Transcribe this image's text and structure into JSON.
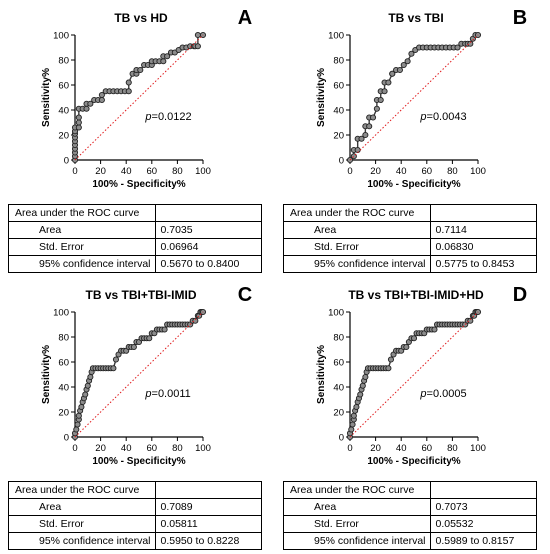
{
  "chart_data": [
    {
      "type": "line",
      "panel_letter": "A",
      "title": "TB vs HD",
      "xlabel": "100% - Specificity%",
      "ylabel": "Sensitivity%",
      "xlim": [
        0,
        100
      ],
      "ylim": [
        0,
        100
      ],
      "xticks": [
        0,
        20,
        40,
        60,
        80,
        100
      ],
      "yticks": [
        0,
        20,
        40,
        60,
        80,
        100
      ],
      "annotation_italic": "p",
      "annotation_value": "=0.0122",
      "series": [
        {
          "x": [
            0,
            0,
            0,
            0,
            0,
            0,
            0,
            0,
            0,
            0,
            3,
            3,
            3,
            3,
            6,
            9,
            9,
            12,
            15,
            18,
            21,
            21,
            24,
            27,
            30,
            33,
            36,
            39,
            42,
            42,
            45,
            48,
            48,
            51,
            54,
            57,
            60,
            60,
            63,
            66,
            69,
            69,
            72,
            75,
            78,
            81,
            84,
            87,
            90,
            93,
            94,
            96,
            96,
            100
          ],
          "y": [
            0,
            3,
            6,
            9,
            12,
            15,
            18,
            21,
            23,
            26,
            26,
            30,
            34,
            41,
            41,
            41,
            45,
            45,
            48,
            48,
            48,
            52,
            55,
            55,
            55,
            55,
            55,
            55,
            55,
            62,
            69,
            69,
            72,
            72,
            76,
            76,
            76,
            79,
            79,
            79,
            79,
            83,
            83,
            86,
            86,
            88,
            90,
            90,
            91,
            91,
            91,
            91,
            100,
            100
          ]
        },
        {
          "x": [
            0,
            100
          ],
          "y": [
            0,
            100
          ],
          "style": "reference"
        }
      ],
      "table": {
        "header": "Area under the ROC curve",
        "rows": [
          {
            "label": "Area",
            "value": "0.7035"
          },
          {
            "label": "Std. Error",
            "value": "0.06964"
          },
          {
            "label": "95% confidence interval",
            "value": "0.5670 to 0.8400"
          }
        ]
      }
    },
    {
      "type": "line",
      "panel_letter": "B",
      "title": "TB vs TBI",
      "xlabel": "100% - Specificity%",
      "ylabel": "Sensitivity%",
      "xlim": [
        0,
        100
      ],
      "ylim": [
        0,
        100
      ],
      "xticks": [
        0,
        20,
        40,
        60,
        80,
        100
      ],
      "yticks": [
        0,
        20,
        40,
        60,
        80,
        100
      ],
      "annotation_italic": "p",
      "annotation_value": "=0.0043",
      "series": [
        {
          "x": [
            0,
            3,
            3,
            6,
            6,
            9,
            12,
            12,
            15,
            15,
            18,
            21,
            21,
            24,
            24,
            27,
            27,
            30,
            33,
            33,
            36,
            39,
            42,
            45,
            48,
            51,
            54,
            57,
            60,
            63,
            66,
            69,
            72,
            75,
            78,
            81,
            84,
            87,
            90,
            92,
            94,
            96,
            98,
            100
          ],
          "y": [
            0,
            3,
            8,
            8,
            17,
            17,
            20,
            27,
            27,
            34,
            34,
            41,
            48,
            48,
            55,
            55,
            62,
            62,
            69,
            69,
            72,
            72,
            76,
            79,
            85,
            88,
            90,
            90,
            90,
            90,
            90,
            90,
            90,
            90,
            90,
            90,
            90,
            93,
            93,
            93,
            93,
            97,
            100,
            100
          ]
        },
        {
          "x": [
            0,
            100
          ],
          "y": [
            0,
            100
          ],
          "style": "reference"
        }
      ],
      "table": {
        "header": "Area under the ROC curve",
        "rows": [
          {
            "label": "Area",
            "value": "0.7114"
          },
          {
            "label": "Std. Error",
            "value": "0.06830"
          },
          {
            "label": "95% confidence interval",
            "value": "0.5775 to 0.8453"
          }
        ]
      }
    },
    {
      "type": "line",
      "panel_letter": "C",
      "title": "TB vs TBI+TBI-IMID",
      "xlabel": "100% - Specificity%",
      "ylabel": "Sensitivity%",
      "xlim": [
        0,
        100
      ],
      "ylim": [
        0,
        100
      ],
      "xticks": [
        0,
        20,
        40,
        60,
        80,
        100
      ],
      "yticks": [
        0,
        20,
        40,
        60,
        80,
        100
      ],
      "annotation_italic": "p",
      "annotation_value": "=0.0011",
      "series": [
        {
          "x": [
            0,
            0,
            1,
            2,
            3,
            3,
            4,
            5,
            6,
            7,
            8,
            9,
            10,
            11,
            12,
            13,
            14,
            16,
            18,
            20,
            22,
            24,
            26,
            28,
            30,
            32,
            34,
            36,
            38,
            40,
            42,
            44,
            46,
            48,
            50,
            52,
            54,
            56,
            58,
            60,
            62,
            64,
            66,
            68,
            70,
            72,
            74,
            76,
            78,
            80,
            82,
            84,
            86,
            88,
            90,
            92,
            94,
            96,
            97,
            98,
            99,
            100
          ],
          "y": [
            0,
            3,
            6,
            10,
            14,
            17,
            21,
            24,
            28,
            31,
            34,
            38,
            41,
            45,
            48,
            52,
            55,
            55,
            55,
            55,
            55,
            55,
            55,
            55,
            55,
            62,
            66,
            69,
            69,
            69,
            72,
            72,
            72,
            76,
            76,
            79,
            79,
            79,
            79,
            83,
            83,
            86,
            86,
            86,
            86,
            90,
            90,
            90,
            90,
            90,
            90,
            90,
            90,
            90,
            90,
            93,
            93,
            97,
            97,
            100,
            100,
            100
          ]
        },
        {
          "x": [
            0,
            100
          ],
          "y": [
            0,
            100
          ],
          "style": "reference"
        }
      ],
      "table": {
        "header": "Area under the ROC curve",
        "rows": [
          {
            "label": "Area",
            "value": "0.7089"
          },
          {
            "label": "Std. Error",
            "value": "0.05811"
          },
          {
            "label": "95% confidence interval",
            "value": "0.5950 to 0.8228"
          }
        ]
      }
    },
    {
      "type": "line",
      "panel_letter": "D",
      "title": "TB vs TBI+TBI-IMID+HD",
      "xlabel": "100% - Specificity%",
      "ylabel": "Sensitivity%",
      "xlim": [
        0,
        100
      ],
      "ylim": [
        0,
        100
      ],
      "xticks": [
        0,
        20,
        40,
        60,
        80,
        100
      ],
      "yticks": [
        0,
        20,
        40,
        60,
        80,
        100
      ],
      "annotation_italic": "p",
      "annotation_value": "=0.0005",
      "series": [
        {
          "x": [
            0,
            0,
            1,
            2,
            3,
            3,
            4,
            5,
            6,
            7,
            8,
            9,
            10,
            11,
            12,
            13,
            14,
            16,
            18,
            20,
            22,
            24,
            26,
            28,
            30,
            32,
            34,
            36,
            38,
            40,
            42,
            44,
            46,
            48,
            50,
            52,
            54,
            56,
            58,
            60,
            62,
            64,
            66,
            68,
            70,
            72,
            74,
            76,
            78,
            80,
            82,
            84,
            86,
            88,
            90,
            92,
            94,
            96,
            97,
            98,
            99,
            100
          ],
          "y": [
            0,
            3,
            6,
            10,
            14,
            17,
            21,
            24,
            28,
            31,
            34,
            38,
            41,
            45,
            48,
            52,
            55,
            55,
            55,
            55,
            55,
            55,
            55,
            55,
            55,
            62,
            66,
            69,
            69,
            69,
            72,
            72,
            76,
            79,
            79,
            83,
            83,
            83,
            83,
            86,
            86,
            86,
            86,
            90,
            90,
            90,
            90,
            90,
            90,
            90,
            90,
            90,
            90,
            90,
            90,
            93,
            93,
            97,
            97,
            100,
            100,
            100
          ]
        },
        {
          "x": [
            0,
            100
          ],
          "y": [
            0,
            100
          ],
          "style": "reference"
        }
      ],
      "table": {
        "header": "Area under the ROC curve",
        "rows": [
          {
            "label": "Area",
            "value": "0.7073"
          },
          {
            "label": "Std. Error",
            "value": "0.05532"
          },
          {
            "label": "95% confidence interval",
            "value": "0.5989 to 0.8157"
          }
        ]
      }
    }
  ],
  "colors": {
    "curve": "#3a3a3a",
    "marker_fill": "#8c8c8c",
    "marker_stroke": "#222222",
    "reference_line": "#e0191b",
    "axis": "#000000"
  }
}
